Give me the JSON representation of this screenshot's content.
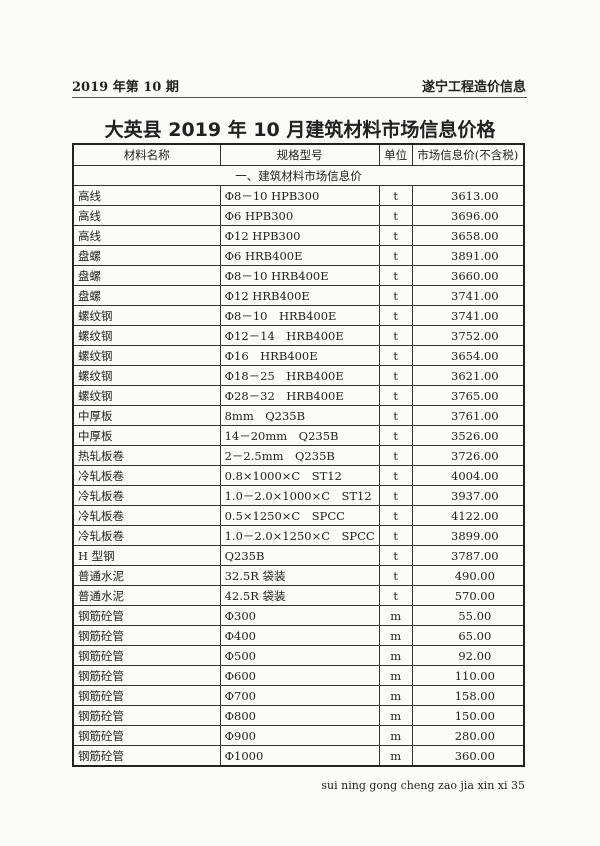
{
  "header": {
    "issue": "2019 年第 10 期",
    "publication": "遂宁工程造价信息"
  },
  "title": "大英县 2019 年 10 月建筑材料市场信息价格",
  "table": {
    "columns": [
      "材料名称",
      "规格型号",
      "单位",
      "市场信息价(不含税)"
    ],
    "section": "一、建筑材料市场信息价",
    "rows": [
      [
        "高线",
        "Φ8－10 HPB300",
        "t",
        "3613.00"
      ],
      [
        "高线",
        "Φ6 HPB300",
        "t",
        "3696.00"
      ],
      [
        "高线",
        "Φ12 HPB300",
        "t",
        "3658.00"
      ],
      [
        "盘螺",
        "Φ6 HRB400E",
        "t",
        "3891.00"
      ],
      [
        "盘螺",
        "Φ8－10 HRB400E",
        "t",
        "3660.00"
      ],
      [
        "盘螺",
        "Φ12 HRB400E",
        "t",
        "3741.00"
      ],
      [
        "螺纹钢",
        "Φ8－10　HRB400E",
        "t",
        "3741.00"
      ],
      [
        "螺纹钢",
        "Φ12－14　HRB400E",
        "t",
        "3752.00"
      ],
      [
        "螺纹钢",
        "Φ16　HRB400E",
        "t",
        "3654.00"
      ],
      [
        "螺纹钢",
        "Φ18－25　HRB400E",
        "t",
        "3621.00"
      ],
      [
        "螺纹钢",
        "Φ28－32　HRB400E",
        "t",
        "3765.00"
      ],
      [
        "中厚板",
        "8mm　Q235B",
        "t",
        "3761.00"
      ],
      [
        "中厚板",
        "14－20mm　Q235B",
        "t",
        "3526.00"
      ],
      [
        "热轧板卷",
        "2－2.5mm　Q235B",
        "t",
        "3726.00"
      ],
      [
        "冷轧板卷",
        "0.8×1000×C　ST12",
        "t",
        "4004.00"
      ],
      [
        "冷轧板卷",
        "1.0－2.0×1000×C　ST12",
        "t",
        "3937.00"
      ],
      [
        "冷轧板卷",
        "0.5×1250×C　SPCC",
        "t",
        "4122.00"
      ],
      [
        "冷轧板卷",
        "1.0－2.0×1250×C　SPCC",
        "t",
        "3899.00"
      ],
      [
        "H 型钢",
        "Q235B",
        "t",
        "3787.00"
      ],
      [
        "普通水泥",
        "32.5R 袋装",
        "t",
        "490.00"
      ],
      [
        "普通水泥",
        "42.5R 袋装",
        "t",
        "570.00"
      ],
      [
        "钢筋砼管",
        "Φ300",
        "m",
        "55.00"
      ],
      [
        "钢筋砼管",
        "Φ400",
        "m",
        "65.00"
      ],
      [
        "钢筋砼管",
        "Φ500",
        "m",
        "92.00"
      ],
      [
        "钢筋砼管",
        "Φ600",
        "m",
        "110.00"
      ],
      [
        "钢筋砼管",
        "Φ700",
        "m",
        "158.00"
      ],
      [
        "钢筋砼管",
        "Φ800",
        "m",
        "150.00"
      ],
      [
        "钢筋砼管",
        "Φ900",
        "m",
        "280.00"
      ],
      [
        "钢筋砼管",
        "Φ1000",
        "m",
        "360.00"
      ]
    ]
  },
  "footer": "sui ning gong cheng zao jia xin xi 35"
}
